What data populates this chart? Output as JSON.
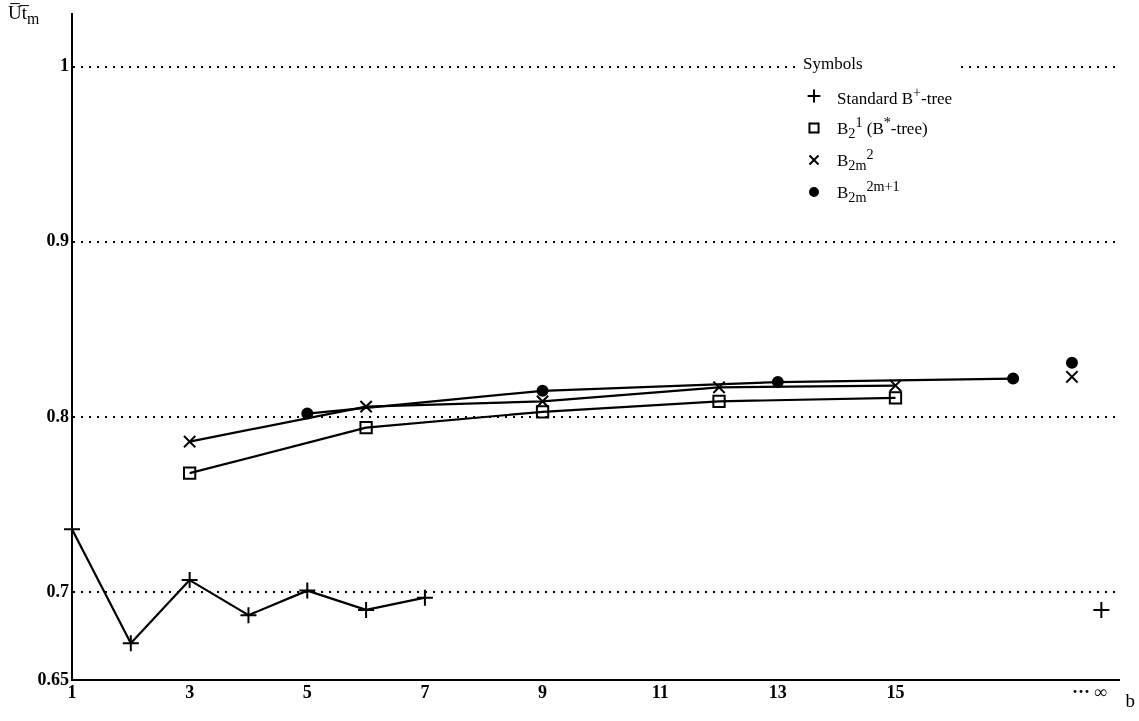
{
  "chart_data": {
    "type": "line",
    "ylabel": "U̅t̅$_{m}$",
    "xlabel": "b",
    "legend_title": "Symbols",
    "legend": "top right",
    "grid": "y",
    "line_style": "solid",
    "xlim": [
      1,
      18.8
    ],
    "xticks": [
      1,
      3,
      5,
      7,
      9,
      11,
      13,
      15,
      {
        "value": 18.3,
        "label": "··· ∞"
      }
    ],
    "ylim": [
      0.65,
      1.03
    ],
    "yticks": [
      0.65,
      0.7,
      0.8,
      0.9,
      1
    ],
    "series": [
      {
        "name": "Standard B$^{+}$-tree",
        "color": "#000000",
        "marker": "cross",
        "x": [
          1,
          2,
          3,
          4,
          5,
          6,
          7
        ],
        "values": [
          0.736,
          0.671,
          0.707,
          0.687,
          0.701,
          0.69,
          0.697
        ]
      },
      {
        "name": "B$_{2}$$^{1}$ (B$^{*}$-tree)",
        "color": "#000000",
        "marker": "square",
        "x": [
          3,
          6,
          9,
          12,
          15
        ],
        "values": [
          0.768,
          0.794,
          0.803,
          0.809,
          0.811
        ]
      },
      {
        "name": "B$_{2m}$$^{2}$",
        "color": "#000000",
        "marker": "x",
        "x": [
          3,
          6,
          9,
          12,
          15
        ],
        "values": [
          0.786,
          0.806,
          0.809,
          0.817,
          0.818
        ]
      },
      {
        "name": "B$_{2m}$$^{2m+1}$",
        "color": "#000000",
        "marker": "circle",
        "x": [
          5,
          9,
          13,
          17
        ],
        "values": [
          0.802,
          0.815,
          0.82,
          0.822
        ]
      },
      {
        "type": "scatter",
        "color": "#000000",
        "marker": "cross",
        "x": [
          18.5
        ],
        "values": [
          0.69
        ]
      },
      {
        "type": "scatter",
        "color": "#000000",
        "marker": "x",
        "x": [
          18
        ],
        "values": [
          0.823
        ]
      },
      {
        "type": "scatter",
        "color": "#000000",
        "marker": "circle",
        "x": [
          18
        ],
        "values": [
          0.831
        ]
      }
    ]
  }
}
